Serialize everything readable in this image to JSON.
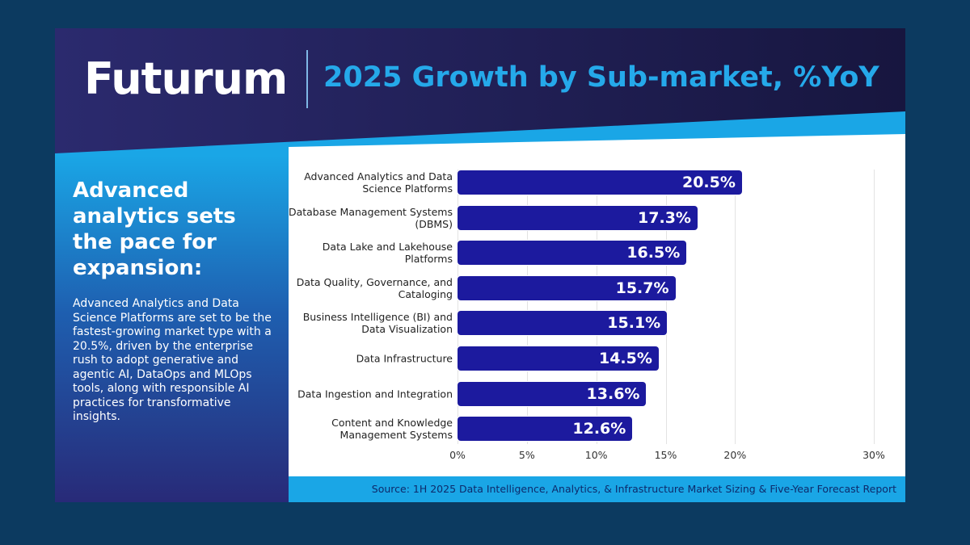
{
  "header": {
    "brand": "Futurum",
    "title": "2025 Growth by Sub-market, %YoY"
  },
  "sidebar": {
    "heading": "Advanced analytics sets the pace for expansion:",
    "body": "Advanced Analytics and Data Science Platforms are set to be the fastest-growing market type with a 20.5%, driven by the enterprise rush to adopt generative and agentic AI, DataOps and MLOps tools, along with responsible AI practices for transformative insights."
  },
  "chart_data": {
    "type": "bar",
    "orientation": "horizontal",
    "categories": [
      "Advanced Analytics and Data Science Platforms",
      "Database Management Systems (DBMS)",
      "Data Lake and Lakehouse Platforms",
      "Data Quality, Governance, and Cataloging",
      "Business Intelligence (BI) and Data Visualization",
      "Data Infrastructure",
      "Data Ingestion and Integration",
      "Content and Knowledge Management Systems"
    ],
    "values": [
      20.5,
      17.3,
      16.5,
      15.7,
      15.1,
      14.5,
      13.6,
      12.6
    ],
    "value_labels": [
      "20.5%",
      "17.3%",
      "16.5%",
      "15.7%",
      "15.1%",
      "14.5%",
      "13.6%",
      "12.6%"
    ],
    "color": "#1c1a9e",
    "xlim": [
      0,
      30
    ],
    "xticks": [
      {
        "value": 0,
        "label": "0%"
      },
      {
        "value": 5,
        "label": "5%"
      },
      {
        "value": 10,
        "label": "10%"
      },
      {
        "value": 15,
        "label": "15%"
      },
      {
        "value": 20,
        "label": "20%"
      },
      {
        "value": 30,
        "label": "30%"
      }
    ],
    "grid": true
  },
  "source": "Source: 1H 2025 Data Intelligence, Analytics, & Infrastructure Market Sizing & Five-Year Forecast Report"
}
